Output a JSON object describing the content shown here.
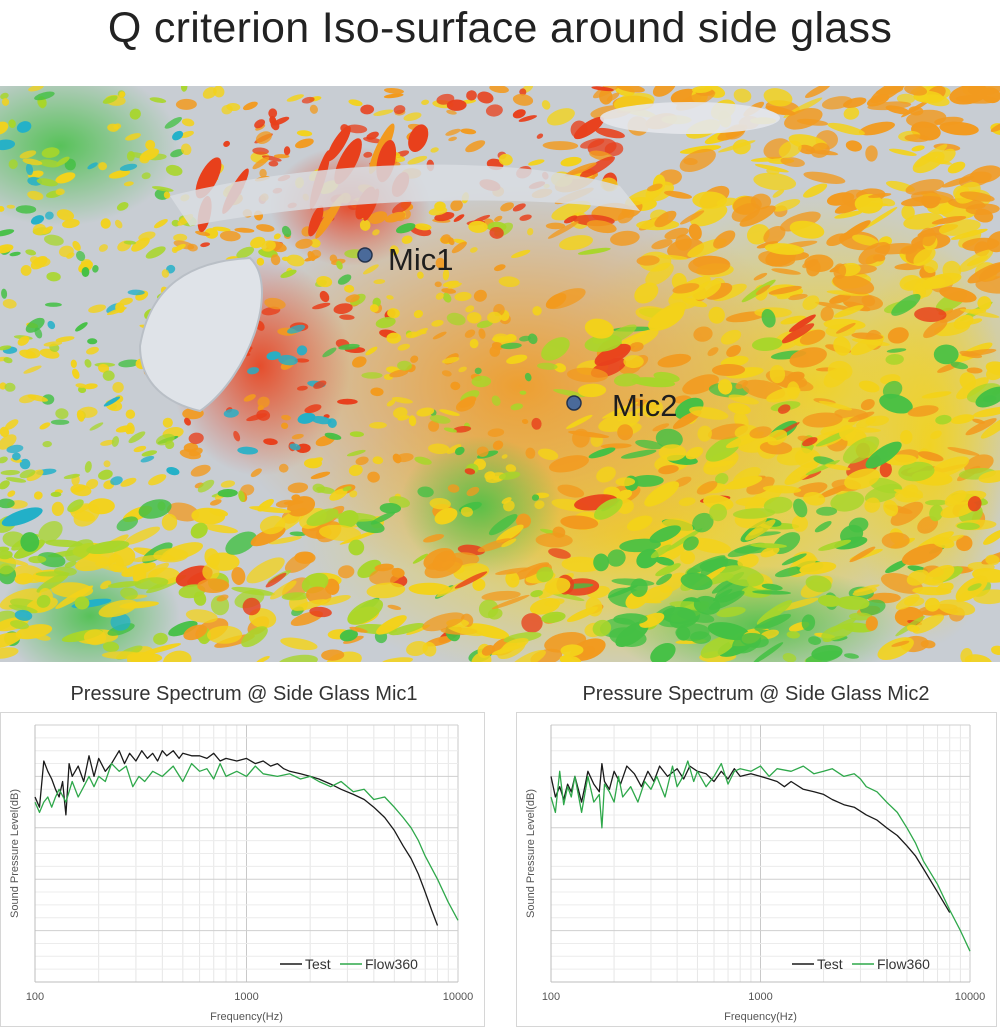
{
  "title": "Q criterion Iso-surface around side glass",
  "simulation": {
    "colors": {
      "background": "#c8cdd3",
      "body": "#dfe3e8",
      "red": "#e8401c",
      "orange": "#f29a1e",
      "yellow": "#f3d21a",
      "lime": "#a8d62a",
      "green": "#44c044",
      "cyan": "#22b0c8"
    },
    "mic_marker_color": "#4a6a9a",
    "mics": [
      {
        "label": "Mic1"
      },
      {
        "label": "Mic2"
      }
    ]
  },
  "chart_data": [
    {
      "type": "line",
      "title": "Pressure Spectrum @ Side Glass Mic1",
      "xlabel": "Frequency(Hz)",
      "ylabel": "Sound Pressure Level(dB)",
      "x_scale": "log",
      "xlim": [
        100,
        10000
      ],
      "ylim": [
        0,
        100
      ],
      "x_ticks": [
        "100",
        "1000",
        "10000"
      ],
      "y_tick_labels": false,
      "grid": true,
      "legend": "bottom-right",
      "series": [
        {
          "name": "Test",
          "color": "#1a1a1a",
          "x": [
            100,
            105,
            110,
            115,
            120,
            125,
            130,
            135,
            140,
            145,
            150,
            160,
            170,
            180,
            190,
            200,
            215,
            230,
            250,
            265,
            280,
            300,
            320,
            340,
            360,
            380,
            400,
            420,
            450,
            480,
            500,
            550,
            600,
            650,
            700,
            750,
            800,
            900,
            1000,
            1100,
            1200,
            1300,
            1400,
            1500,
            1600,
            1800,
            2000,
            2200,
            2500,
            2800,
            3200,
            3600,
            4000,
            4500,
            5000,
            5500,
            6000,
            6500,
            7000,
            7500,
            8000
          ],
          "y": [
            72,
            68,
            86,
            82,
            79,
            75,
            72,
            78,
            65,
            85,
            80,
            84,
            78,
            88,
            80,
            87,
            82,
            85,
            90,
            85,
            89,
            86,
            90,
            87,
            89,
            86,
            90,
            88,
            90,
            87,
            89,
            88,
            88,
            87,
            89,
            86,
            87,
            86,
            87,
            85,
            86,
            84,
            85,
            83,
            82,
            81,
            80,
            79,
            77,
            75,
            73,
            71,
            68,
            64,
            59,
            53,
            48,
            42,
            35,
            28,
            22
          ]
        },
        {
          "name": "Flow360",
          "color": "#2ea84a",
          "x": [
            100,
            105,
            110,
            115,
            120,
            125,
            130,
            140,
            150,
            160,
            170,
            180,
            190,
            200,
            215,
            230,
            250,
            270,
            290,
            310,
            330,
            360,
            400,
            450,
            500,
            550,
            600,
            650,
            700,
            750,
            800,
            900,
            1000,
            1100,
            1200,
            1400,
            1600,
            1800,
            2000,
            2200,
            2500,
            2800,
            3200,
            3600,
            4000,
            4500,
            5000,
            5500,
            6000,
            6500,
            7000,
            8000,
            9000,
            10000
          ],
          "y": [
            70,
            66,
            70,
            72,
            68,
            72,
            75,
            70,
            78,
            72,
            76,
            80,
            76,
            80,
            78,
            85,
            82,
            84,
            76,
            80,
            78,
            82,
            80,
            84,
            78,
            85,
            82,
            83,
            79,
            85,
            80,
            82,
            80,
            84,
            81,
            80,
            81,
            79,
            80,
            78,
            76,
            78,
            74,
            75,
            71,
            72,
            68,
            64,
            60,
            55,
            49,
            40,
            31,
            24
          ]
        }
      ]
    },
    {
      "type": "line",
      "title": "Pressure Spectrum @ Side Glass Mic2",
      "xlabel": "Frequency(Hz)",
      "ylabel": "Sound Pressure Level(dB)",
      "x_scale": "log",
      "xlim": [
        100,
        10000
      ],
      "ylim": [
        0,
        100
      ],
      "x_ticks": [
        "100",
        "1000",
        "10000"
      ],
      "y_tick_labels": false,
      "grid": true,
      "legend": "bottom-right",
      "series": [
        {
          "name": "Test",
          "color": "#1a1a1a",
          "x": [
            100,
            105,
            110,
            115,
            120,
            125,
            130,
            135,
            140,
            145,
            150,
            160,
            170,
            175,
            180,
            190,
            200,
            215,
            230,
            250,
            270,
            290,
            310,
            330,
            360,
            400,
            430,
            460,
            500,
            550,
            600,
            650,
            700,
            750,
            800,
            900,
            1000,
            1100,
            1200,
            1300,
            1400,
            1600,
            1800,
            2000,
            2200,
            2500,
            2800,
            3200,
            3600,
            4000,
            4500,
            5000,
            5500,
            6000,
            7000,
            8000
          ],
          "y": [
            80,
            72,
            76,
            71,
            77,
            74,
            80,
            75,
            70,
            76,
            82,
            77,
            74,
            85,
            78,
            75,
            82,
            77,
            84,
            81,
            76,
            82,
            78,
            84,
            80,
            83,
            79,
            84,
            82,
            81,
            78,
            82,
            79,
            83,
            80,
            81,
            80,
            79,
            78,
            76,
            78,
            75,
            74,
            73,
            71,
            69,
            68,
            65,
            63,
            60,
            57,
            53,
            49,
            44,
            35,
            27
          ]
        },
        {
          "name": "Flow360",
          "color": "#2ea84a",
          "x": [
            100,
            105,
            110,
            115,
            120,
            125,
            130,
            140,
            150,
            160,
            170,
            175,
            180,
            190,
            200,
            210,
            220,
            240,
            260,
            280,
            300,
            320,
            350,
            380,
            400,
            420,
            450,
            480,
            500,
            550,
            600,
            650,
            700,
            750,
            800,
            900,
            1000,
            1100,
            1200,
            1400,
            1600,
            1800,
            2000,
            2200,
            2500,
            2800,
            3000,
            3200,
            3600,
            4000,
            4500,
            5000,
            5500,
            6000,
            7000,
            8000,
            9000,
            10000
          ],
          "y": [
            72,
            66,
            82,
            69,
            76,
            72,
            80,
            66,
            80,
            70,
            73,
            60,
            77,
            74,
            70,
            80,
            72,
            76,
            70,
            78,
            75,
            80,
            72,
            84,
            76,
            79,
            86,
            78,
            82,
            76,
            80,
            85,
            77,
            82,
            83,
            82,
            84,
            80,
            83,
            82,
            84,
            81,
            82,
            83,
            80,
            81,
            79,
            76,
            74,
            70,
            66,
            60,
            54,
            47,
            38,
            28,
            20,
            12
          ]
        }
      ]
    }
  ]
}
